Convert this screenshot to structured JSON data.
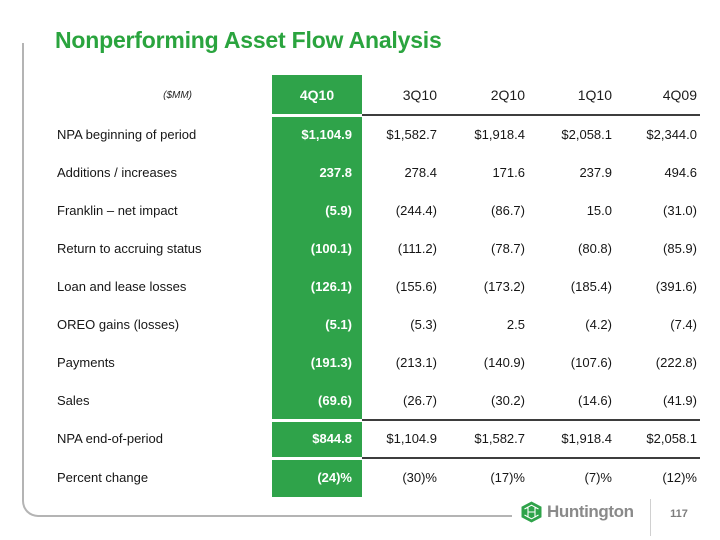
{
  "slide": {
    "title": "Nonperforming Asset Flow Analysis",
    "page_number": "117",
    "logo_text": "Huntington",
    "colors": {
      "title_green": "#2aa43e",
      "highlight_green": "#2fa34a",
      "rule_dark": "#3d3d3d",
      "frame_gray": "#b4b4b4",
      "logo_gray": "#8a8a8a"
    }
  },
  "table": {
    "unit_label": "($MM)",
    "highlighted_column": "4Q10",
    "columns": [
      "4Q10",
      "3Q10",
      "2Q10",
      "1Q10",
      "4Q09"
    ],
    "rows": [
      {
        "label": "NPA beginning of period",
        "values": [
          "$1,104.9",
          "$1,582.7",
          "$1,918.4",
          "$2,058.1",
          "$2,344.0"
        ]
      },
      {
        "label": "Additions / increases",
        "values": [
          "237.8",
          "278.4",
          "171.6",
          "237.9",
          "494.6"
        ]
      },
      {
        "label": "Franklin – net impact",
        "values": [
          "(5.9)",
          "(244.4)",
          "(86.7)",
          "15.0",
          "(31.0)"
        ]
      },
      {
        "label": "Return to accruing status",
        "values": [
          "(100.1)",
          "(111.2)",
          "(78.7)",
          "(80.8)",
          "(85.9)"
        ]
      },
      {
        "label": "Loan and lease losses",
        "values": [
          "(126.1)",
          "(155.6)",
          "(173.2)",
          "(185.4)",
          "(391.6)"
        ]
      },
      {
        "label": "OREO gains (losses)",
        "values": [
          "(5.1)",
          "(5.3)",
          "2.5",
          "(4.2)",
          "(7.4)"
        ]
      },
      {
        "label": "Payments",
        "values": [
          "(191.3)",
          "(213.1)",
          "(140.9)",
          "(107.6)",
          "(222.8)"
        ]
      },
      {
        "label": "Sales",
        "values": [
          "(69.6)",
          "(26.7)",
          "(30.2)",
          "(14.6)",
          "(41.9)"
        ]
      },
      {
        "label": "NPA end-of-period",
        "values": [
          "$844.8",
          "$1,104.9",
          "$1,582.7",
          "$1,918.4",
          "$2,058.1"
        ]
      },
      {
        "label": "Percent change",
        "values": [
          "(24)%",
          "(30)%",
          "(17)%",
          "(7)%",
          "(12)%"
        ]
      }
    ]
  }
}
